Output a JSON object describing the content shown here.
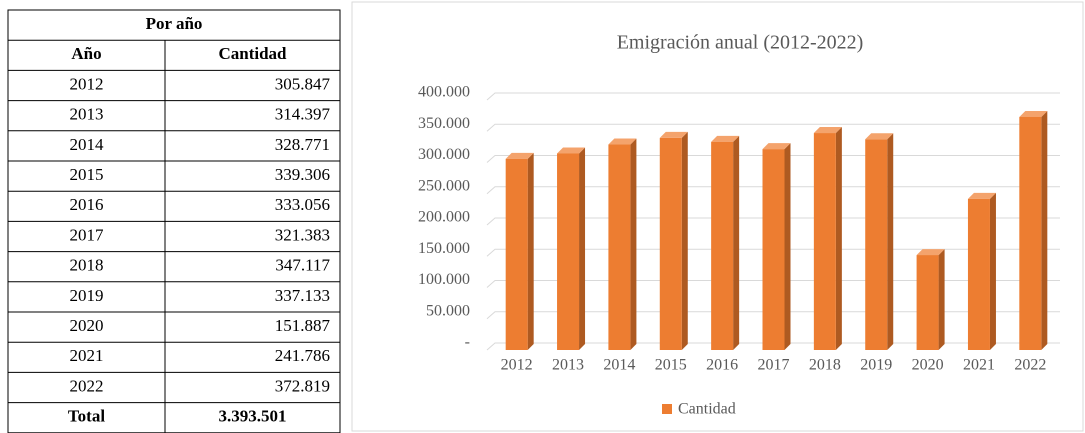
{
  "table": {
    "title": "Por año",
    "columns": [
      "Año",
      "Cantidad"
    ],
    "rows": [
      [
        "2012",
        "305.847"
      ],
      [
        "2013",
        "314.397"
      ],
      [
        "2014",
        "328.771"
      ],
      [
        "2015",
        "339.306"
      ],
      [
        "2016",
        "333.056"
      ],
      [
        "2017",
        "321.383"
      ],
      [
        "2018",
        "347.117"
      ],
      [
        "2019",
        "337.133"
      ],
      [
        "2020",
        "151.887"
      ],
      [
        "2021",
        "241.786"
      ],
      [
        "2022",
        "372.819"
      ]
    ],
    "total": [
      "Total",
      "3.393.501"
    ]
  },
  "chart_data": {
    "type": "bar",
    "title": "Emigración anual (2012-2022)",
    "categories": [
      "2012",
      "2013",
      "2014",
      "2015",
      "2016",
      "2017",
      "2018",
      "2019",
      "2020",
      "2021",
      "2022"
    ],
    "series": [
      {
        "name": "Cantidad",
        "color": "#ed7d31",
        "values": [
          305847,
          314397,
          328771,
          339306,
          333056,
          321383,
          347117,
          337133,
          151887,
          241786,
          372819
        ]
      }
    ],
    "ylim": [
      0,
      400000
    ],
    "yticks": [
      {
        "value": 0,
        "label": "-"
      },
      {
        "value": 50000,
        "label": "50.000"
      },
      {
        "value": 100000,
        "label": "100.000"
      },
      {
        "value": 150000,
        "label": "150.000"
      },
      {
        "value": 200000,
        "label": "200.000"
      },
      {
        "value": 250000,
        "label": "250.000"
      },
      {
        "value": 300000,
        "label": "300.000"
      },
      {
        "value": 350000,
        "label": "350.000"
      },
      {
        "value": 400000,
        "label": "400.000"
      }
    ],
    "grid": true,
    "legend": "bottom"
  }
}
